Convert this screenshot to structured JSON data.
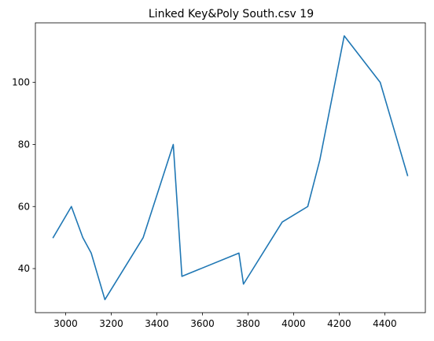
{
  "chart_data": {
    "type": "line",
    "title": "Linked Key&Poly South.csv 19",
    "xlabel": "",
    "ylabel": "",
    "xlim": [
      2867,
      4578
    ],
    "ylim": [
      25.8,
      119.2
    ],
    "xticks": [
      3000,
      3200,
      3400,
      3600,
      3800,
      4000,
      4200,
      4400
    ],
    "yticks": [
      40,
      60,
      80,
      100
    ],
    "grid": false,
    "series": [
      {
        "color": "#1f77b4",
        "x": [
          2945,
          3025,
          3075,
          3112,
          3172,
          3340,
          3472,
          3510,
          3760,
          3780,
          3950,
          4062,
          4115,
          4222,
          4380,
          4500
        ],
        "y": [
          50,
          60,
          50,
          45,
          30,
          50,
          80,
          37.5,
          45,
          35,
          55,
          60,
          75,
          115,
          100,
          70
        ]
      }
    ]
  }
}
